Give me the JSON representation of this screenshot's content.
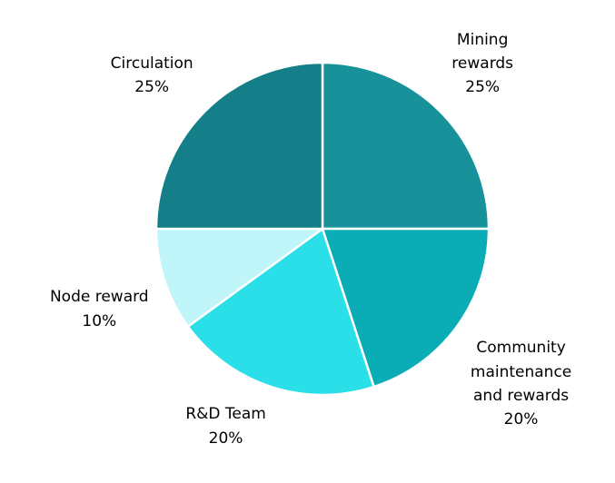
{
  "chart_data": {
    "type": "pie",
    "title": "",
    "background_color": "#ffffff",
    "text_color": "#000000",
    "divider_color": "#ffffff",
    "start_angle_deg_from_top": 0,
    "direction": "clockwise",
    "label_distance_ratio": 1.1,
    "total": 100,
    "slices": [
      {
        "label": "Mining rewards",
        "value": 25,
        "pct_label": "25%",
        "color": "#17919A",
        "label_lines": [
          "Mining",
          "rewards",
          "25%"
        ]
      },
      {
        "label": "Community maintenance and rewards",
        "value": 20,
        "pct_label": "20%",
        "color": "#0AACB6",
        "label_lines": [
          "Community",
          "maintenance",
          "and rewards",
          "20%"
        ]
      },
      {
        "label": "R&D Team",
        "value": 20,
        "pct_label": "20%",
        "color": "#2ADFE8",
        "label_lines": [
          "R&D Team",
          "20%"
        ]
      },
      {
        "label": "Node reward",
        "value": 10,
        "pct_label": "10%",
        "color": "#C0F5F9",
        "label_lines": [
          "Node reward",
          "10%"
        ]
      },
      {
        "label": "Circulation",
        "value": 25,
        "pct_label": "25%",
        "color": "#147F88",
        "label_lines": [
          "Circulation",
          "25%"
        ]
      }
    ]
  }
}
